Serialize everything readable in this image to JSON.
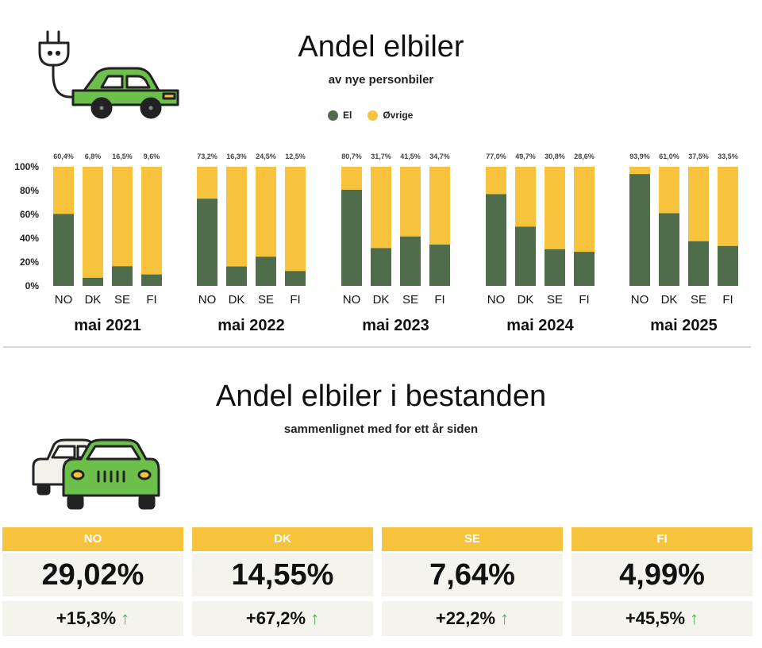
{
  "header": {
    "title": "Andel elbiler",
    "subtitle": "av nye personbiler"
  },
  "legend": [
    {
      "label": "El",
      "color": "#4f6d4a"
    },
    {
      "label": "Øvrige",
      "color": "#f7c23c"
    }
  ],
  "chart_data": {
    "type": "bar",
    "stacked": true,
    "y_ticks": [
      "0%",
      "20%",
      "40%",
      "60%",
      "80%",
      "100%"
    ],
    "ylim": [
      0,
      100
    ],
    "grid": false,
    "legend_position": "top",
    "colors": {
      "el": "#4f6d4a",
      "ovrige": "#f7c23c"
    },
    "groups": [
      {
        "label": "mai 2021",
        "categories": [
          "NO",
          "DK",
          "SE",
          "FI"
        ],
        "values": [
          60.4,
          6.8,
          16.5,
          9.6
        ],
        "value_labels": [
          "60,4%",
          "6,8%",
          "16,5%",
          "9,6%"
        ]
      },
      {
        "label": "mai 2022",
        "categories": [
          "NO",
          "DK",
          "SE",
          "FI"
        ],
        "values": [
          73.2,
          16.3,
          24.5,
          12.5
        ],
        "value_labels": [
          "73,2%",
          "16,3%",
          "24,5%",
          "12,5%"
        ]
      },
      {
        "label": "mai 2023",
        "categories": [
          "NO",
          "DK",
          "SE",
          "FI"
        ],
        "values": [
          80.7,
          31.7,
          41.5,
          34.7
        ],
        "value_labels": [
          "80,7%",
          "31,7%",
          "41,5%",
          "34,7%"
        ]
      },
      {
        "label": "mai 2024",
        "categories": [
          "NO",
          "DK",
          "SE",
          "FI"
        ],
        "values": [
          77.0,
          49.7,
          30.8,
          28.6
        ],
        "value_labels": [
          "77,0%",
          "49,7%",
          "30,8%",
          "28,6%"
        ]
      },
      {
        "label": "mai 2025",
        "categories": [
          "NO",
          "DK",
          "SE",
          "FI"
        ],
        "values": [
          93.9,
          61.0,
          37.5,
          33.5
        ],
        "value_labels": [
          "93,9%",
          "61,0%",
          "37,5%",
          "33,5%"
        ]
      }
    ]
  },
  "stock": {
    "title": "Andel elbiler i bestanden",
    "subtitle": "sammenlignet med for ett år siden",
    "cards": [
      {
        "country": "NO",
        "share": "29,02%",
        "change": "+15,3%"
      },
      {
        "country": "DK",
        "share": "14,55%",
        "change": "+67,2%"
      },
      {
        "country": "SE",
        "share": "7,64%",
        "change": "+22,2%"
      },
      {
        "country": "FI",
        "share": "4,99%",
        "change": "+45,5%"
      }
    ]
  },
  "icons": [
    "plug-car-icon",
    "two-cars-icon",
    "arrow-up-icon"
  ]
}
